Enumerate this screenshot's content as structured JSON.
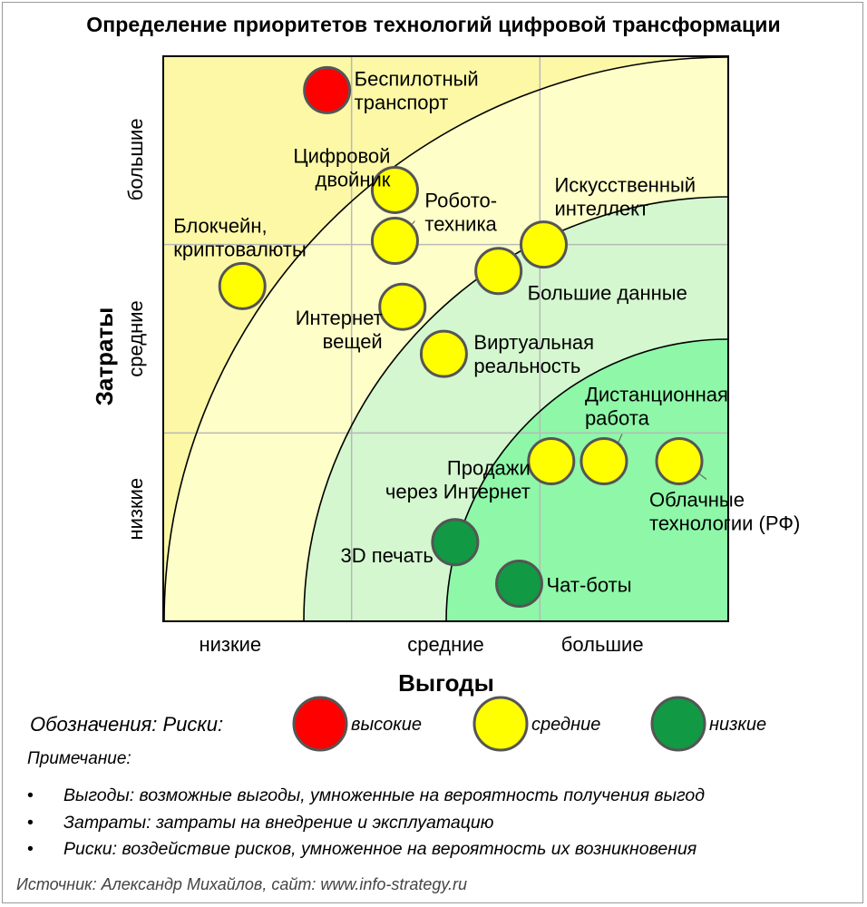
{
  "title": "Определение приоритетов технологий цифровой трансформации",
  "chart_data": {
    "type": "scatter",
    "title": "Определение приоритетов технологий цифровой трансформации",
    "xlabel": "Выгоды",
    "ylabel": "Затраты",
    "x_categories": [
      "низкие",
      "средние",
      "большие"
    ],
    "y_categories": [
      "низкие",
      "средние",
      "большие"
    ],
    "xlim": [
      0,
      3
    ],
    "ylim": [
      0,
      3
    ],
    "grid": true,
    "zones": [
      {
        "name": "low-priority",
        "color": "#FCF8A6"
      },
      {
        "name": "medium-priority",
        "color": "#FEFEC8"
      },
      {
        "name": "high-priority",
        "color": "#D4F7CF"
      },
      {
        "name": "top-priority",
        "color": "#8EF7A8"
      }
    ],
    "points": [
      {
        "label": "Беспилотный транспорт",
        "lines": [
          "Беспилотный",
          "транспорт"
        ],
        "x": 0.87,
        "y": 2.82,
        "risk": "high"
      },
      {
        "label": "Цифровой двойник",
        "lines": [
          "Цифровой",
          "двойник"
        ],
        "x": 1.23,
        "y": 2.29,
        "risk": "medium"
      },
      {
        "label": "Робототехника",
        "lines": [
          "Робото-",
          "техника"
        ],
        "x": 1.23,
        "y": 2.02,
        "risk": "medium"
      },
      {
        "label": "Блокчейн, криптовалюты",
        "lines": [
          "Блокчейн,",
          "криптовалюты"
        ],
        "x": 0.42,
        "y": 1.78,
        "risk": "medium"
      },
      {
        "label": "Интернет вещей",
        "lines": [
          "Интернет",
          "вещей"
        ],
        "x": 1.27,
        "y": 1.67,
        "risk": "medium"
      },
      {
        "label": "Искусственный интеллект",
        "lines": [
          "Искусственный",
          "интеллект"
        ],
        "x": 2.02,
        "y": 2.0,
        "risk": "medium"
      },
      {
        "label": "Большие данные",
        "lines": [
          "Большие данные"
        ],
        "x": 1.78,
        "y": 1.86,
        "risk": "medium"
      },
      {
        "label": "Виртуальная реальность",
        "lines": [
          "Виртуальная",
          "реальность"
        ],
        "x": 1.49,
        "y": 1.42,
        "risk": "medium"
      },
      {
        "label": "Продажи через Интернет",
        "lines": [
          "Продажи",
          "через Интернет"
        ],
        "x": 2.06,
        "y": 0.85,
        "risk": "medium"
      },
      {
        "label": "Дистанционная работа",
        "lines": [
          "Дистанционная",
          "работа"
        ],
        "x": 2.34,
        "y": 0.85,
        "risk": "medium"
      },
      {
        "label": "Облачные технологии (РФ)",
        "lines": [
          "Облачные",
          "технологии (РФ)"
        ],
        "x": 2.74,
        "y": 0.85,
        "risk": "medium"
      },
      {
        "label": "3D печать",
        "lines": [
          "3D печать"
        ],
        "x": 1.55,
        "y": 0.42,
        "risk": "low"
      },
      {
        "label": "Чат-боты",
        "lines": [
          "Чат-боты"
        ],
        "x": 1.89,
        "y": 0.2,
        "risk": "low"
      }
    ],
    "risk_colors": {
      "high": "#FF0000",
      "medium": "#FFFF00",
      "low": "#119944"
    }
  },
  "legend": {
    "title": "Обозначения:  Риски:",
    "items": [
      {
        "risk": "high",
        "label": "высокие"
      },
      {
        "risk": "medium",
        "label": "средние"
      },
      {
        "risk": "low",
        "label": "низкие"
      }
    ]
  },
  "notes": {
    "heading": "Примечание:",
    "items": [
      "Выгоды: возможные выгоды, умноженные на вероятность получения выгод",
      "Затраты: затраты на внедрение и эксплуатацию",
      "Риски: воздействие рисков, умноженное на вероятность их возникновения"
    ]
  },
  "source": "Источник: Александр Михайлов, сайт: www.info-strategy.ru"
}
